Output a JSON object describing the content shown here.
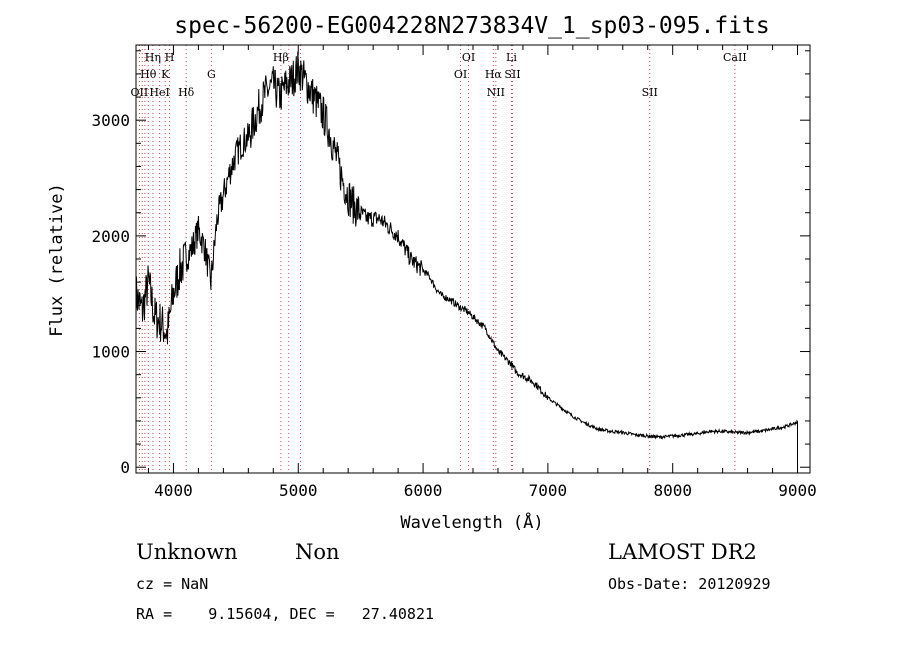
{
  "chart_data": {
    "type": "line",
    "title": "spec-56200-EG004228N273834V_1_sp03-095.fits",
    "xlabel": "Wavelength (Å)",
    "ylabel": "Flux (relative)",
    "xlim": [
      3700,
      9100
    ],
    "ylim": [
      -50,
      3650
    ],
    "xticks": [
      4000,
      5000,
      6000,
      7000,
      8000,
      9000
    ],
    "yticks": [
      0,
      1000,
      2000,
      3000
    ],
    "grid": false,
    "series": [
      {
        "x": [
          3700,
          3750,
          3800,
          3850,
          3900,
          3950,
          4000,
          4050,
          4100,
          4150,
          4200,
          4250,
          4300,
          4350,
          4400,
          4450,
          4500,
          4550,
          4600,
          4650,
          4700,
          4750,
          4800,
          4850,
          4900,
          4950,
          5000,
          5050,
          5100,
          5150,
          5200,
          5250,
          5300,
          5350,
          5400,
          5450,
          5500,
          5550,
          5600,
          5650,
          5700,
          5750,
          5800,
          5850,
          5900,
          5950,
          6000,
          6050,
          6100,
          6150,
          6200,
          6250,
          6300,
          6350,
          6400,
          6450,
          6500,
          6550,
          6600,
          6650,
          6700,
          6750,
          6800,
          6850,
          6900,
          6950,
          7000,
          7050,
          7100,
          7150,
          7200,
          7300,
          7400,
          7500,
          7600,
          7700,
          7800,
          7900,
          8000,
          8100,
          8200,
          8300,
          8400,
          8500,
          8600,
          8700,
          8800,
          8900,
          9000
        ],
        "y": [
          1500,
          1350,
          1600,
          1300,
          1250,
          1150,
          1500,
          1700,
          1800,
          1900,
          2050,
          1900,
          1600,
          2150,
          2350,
          2550,
          2700,
          2800,
          2850,
          3000,
          3150,
          3250,
          3300,
          3200,
          3300,
          3350,
          3450,
          3350,
          3250,
          3150,
          3050,
          2900,
          2700,
          2500,
          2350,
          2250,
          2200,
          2150,
          2150,
          2150,
          2100,
          2050,
          2000,
          1900,
          1800,
          1750,
          1700,
          1650,
          1550,
          1480,
          1460,
          1420,
          1380,
          1350,
          1300,
          1250,
          1200,
          1100,
          1000,
          950,
          900,
          820,
          790,
          760,
          720,
          660,
          600,
          560,
          520,
          480,
          440,
          380,
          330,
          310,
          300,
          280,
          270,
          260,
          270,
          280,
          290,
          310,
          310,
          300,
          300,
          310,
          330,
          350,
          390
        ]
      }
    ],
    "spectral_lines": [
      {
        "label": "Hη",
        "x": 3835,
        "row": 0
      },
      {
        "label": "H",
        "x": 3969,
        "row": 0
      },
      {
        "label": "Hθ",
        "x": 3798,
        "row": 1
      },
      {
        "label": "K",
        "x": 3934,
        "row": 1
      },
      {
        "label": "G",
        "x": 4304,
        "row": 1
      },
      {
        "label": "OII",
        "x": 3727,
        "row": 2
      },
      {
        "label": "HeI",
        "x": 3889,
        "row": 2
      },
      {
        "label": "Hδ",
        "x": 4102,
        "row": 2
      },
      {
        "label": "Hβ",
        "x": 4861,
        "row": 0
      },
      {
        "label": "OI",
        "x": 6364,
        "row": 0
      },
      {
        "label": "Li",
        "x": 6708,
        "row": 0
      },
      {
        "label": "CaII",
        "x": 8498,
        "row": 0
      },
      {
        "label": "OI",
        "x": 6300,
        "row": 1
      },
      {
        "label": "Hα",
        "x": 6563,
        "row": 1
      },
      {
        "label": "SII",
        "x": 6716,
        "row": 1
      },
      {
        "label": "NII",
        "x": 6583,
        "row": 2
      },
      {
        "label": "SII",
        "x": 7816,
        "row": 2
      }
    ],
    "extra_line_markers": [
      3750,
      3771,
      4924,
      5018
    ]
  },
  "info": {
    "class": "Unknown",
    "subclass": "Non",
    "survey": "LAMOST DR2",
    "cz": "cz = NaN",
    "obsdate": "Obs-Date: 20120929",
    "coords": "RA =    9.15604, DEC =   27.40821"
  }
}
